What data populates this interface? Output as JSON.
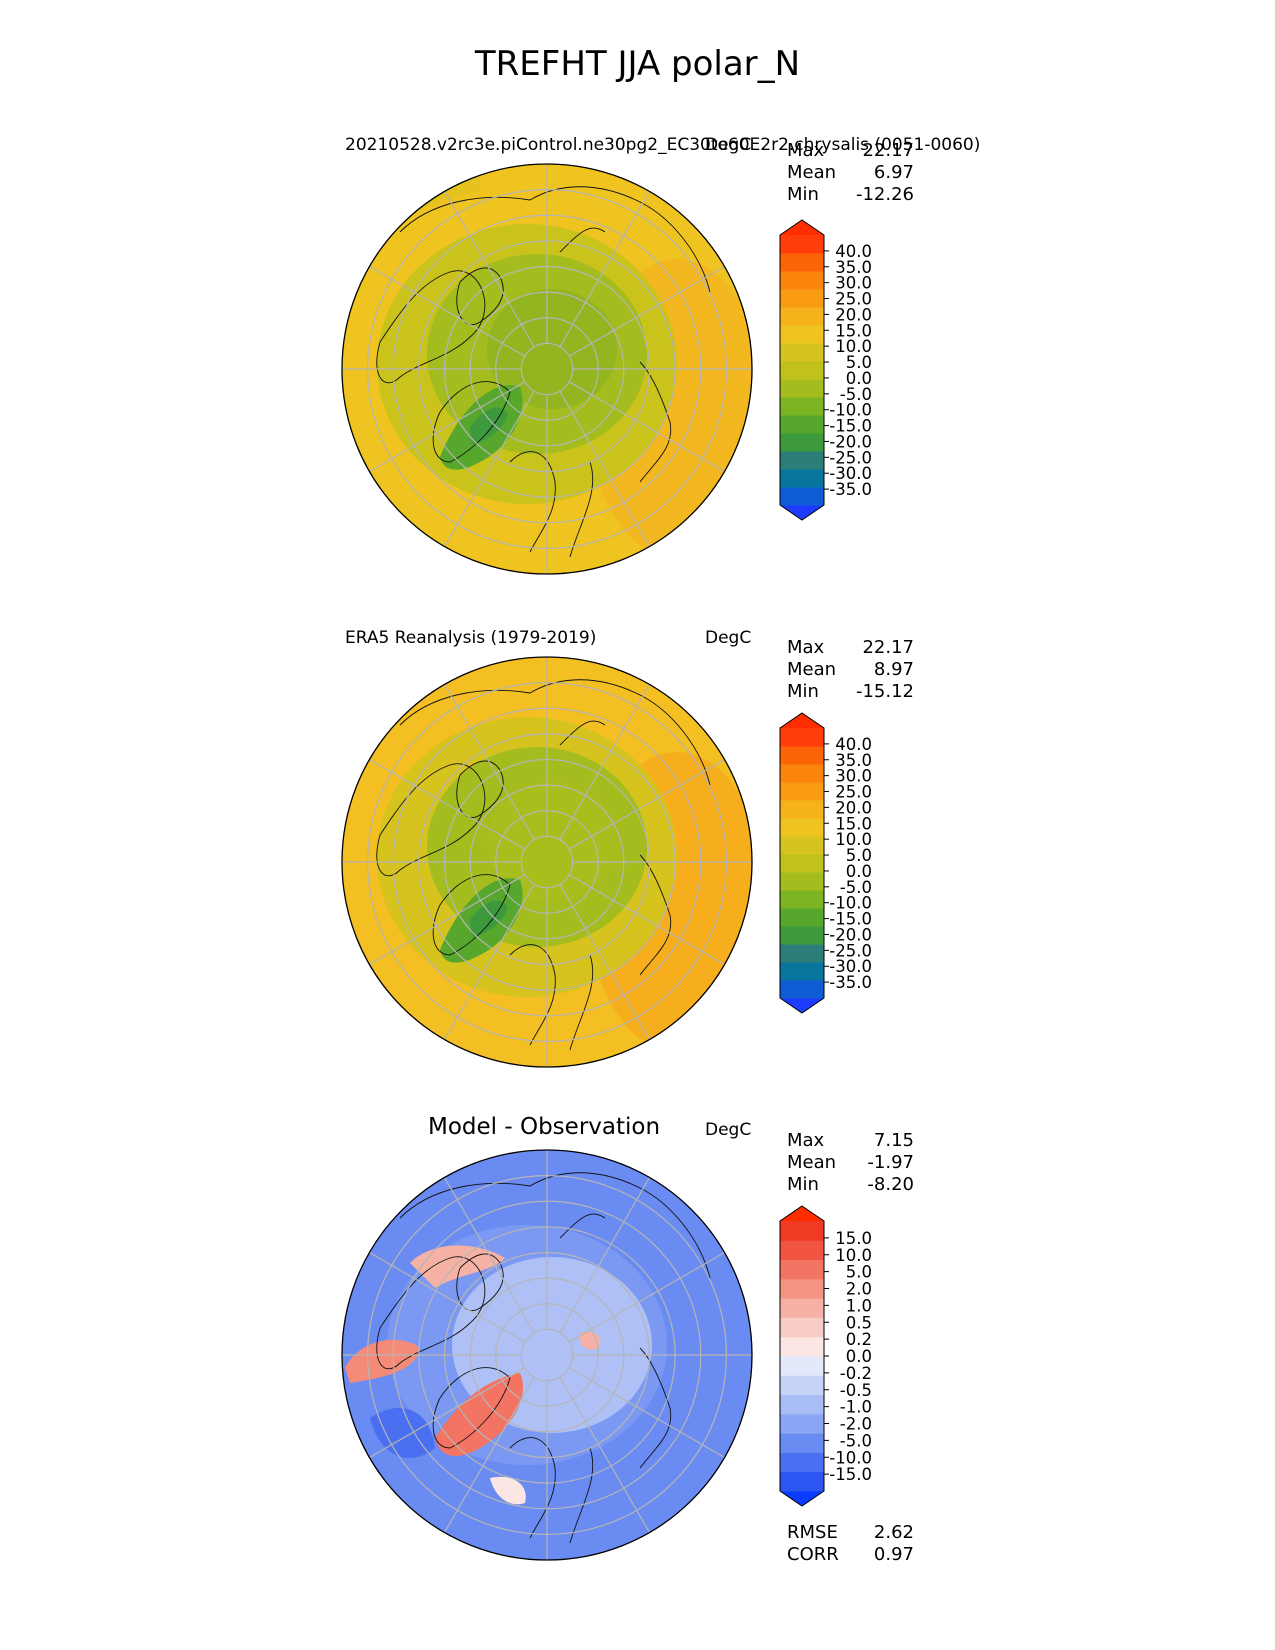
{
  "figure_title": "TREFHT JJA polar_N",
  "panels": [
    {
      "id": "model",
      "title": "20210528.v2rc3e.piControl.ne30pg2_EC30to60E2r2.chrysalis (0051-0060)",
      "units": "DegC",
      "stats": [
        {
          "label": "Max",
          "value": "22.17"
        },
        {
          "label": "Mean",
          "value": "6.97"
        },
        {
          "label": "Min",
          "value": "-12.26"
        }
      ],
      "colorbar": {
        "labels": [
          "40.0",
          "35.0",
          "30.0",
          "25.0",
          "20.0",
          "15.0",
          "10.0",
          "5.0",
          "0.0",
          "-5.0",
          "-10.0",
          "-15.0",
          "-20.0",
          "-25.0",
          "-30.0",
          "-35.0"
        ],
        "colors": [
          "#1c3cff",
          "#0e5cd6",
          "#08759e",
          "#2c7f79",
          "#3d9a3c",
          "#56a72b",
          "#7cb423",
          "#a4bc1d",
          "#c0c21b",
          "#d6c31e",
          "#efc420",
          "#f6b21a",
          "#f99c12",
          "#fb840c",
          "#fc6408",
          "#ff3c0a",
          "#ff2e00"
        ]
      },
      "map_style": "temperature"
    },
    {
      "id": "obs",
      "title": "ERA5 Reanalysis (1979-2019)",
      "units": "DegC",
      "stats": [
        {
          "label": "Max",
          "value": "22.17"
        },
        {
          "label": "Mean",
          "value": "8.97"
        },
        {
          "label": "Min",
          "value": "-15.12"
        }
      ],
      "colorbar": {
        "labels": [
          "40.0",
          "35.0",
          "30.0",
          "25.0",
          "20.0",
          "15.0",
          "10.0",
          "5.0",
          "0.0",
          "-5.0",
          "-10.0",
          "-15.0",
          "-20.0",
          "-25.0",
          "-30.0",
          "-35.0"
        ],
        "colors": [
          "#1c3cff",
          "#0e5cd6",
          "#08759e",
          "#2c7f79",
          "#3d9a3c",
          "#56a72b",
          "#7cb423",
          "#a4bc1d",
          "#c0c21b",
          "#d6c31e",
          "#efc420",
          "#f6b21a",
          "#f99c12",
          "#fb840c",
          "#fc6408",
          "#ff3c0a",
          "#ff2e00"
        ]
      },
      "map_style": "temperature_warm"
    },
    {
      "id": "diff",
      "title": "Model - Observation",
      "units": "DegC",
      "stats": [
        {
          "label": "Max",
          "value": "7.15"
        },
        {
          "label": "Mean",
          "value": "-1.97"
        },
        {
          "label": "Min",
          "value": "-8.20"
        }
      ],
      "colorbar": {
        "labels": [
          "15.0",
          "10.0",
          "5.0",
          "2.0",
          "1.0",
          "0.5",
          "0.2",
          "0.0",
          "-0.2",
          "-0.5",
          "-1.0",
          "-2.0",
          "-5.0",
          "-10.0",
          "-15.0"
        ],
        "colors": [
          "#0a3cff",
          "#2c55f2",
          "#4a6ff0",
          "#6a8cf2",
          "#8ba6f4",
          "#a8bcf5",
          "#c5d3f8",
          "#e2e9fb",
          "#fbe6e3",
          "#f8cdc6",
          "#f6b0a5",
          "#f49283",
          "#f37463",
          "#f25443",
          "#f03a24",
          "#ff2e00"
        ]
      },
      "map_style": "difference",
      "footer_stats": [
        {
          "label": "RMSE",
          "value": "2.62"
        },
        {
          "label": "CORR",
          "value": "0.97"
        }
      ]
    }
  ]
}
